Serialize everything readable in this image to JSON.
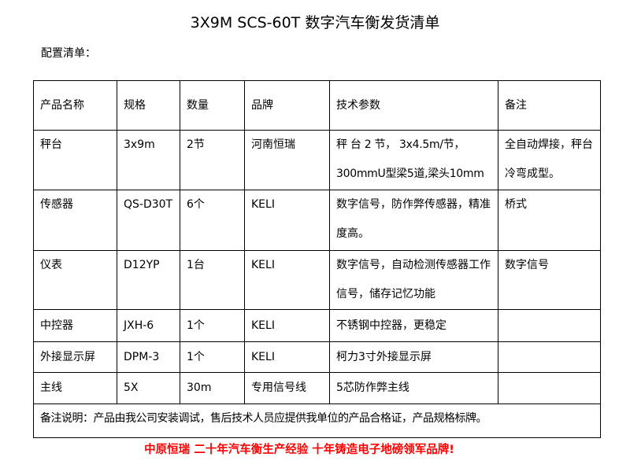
{
  "title": "3X9M SCS-60T 数字汽车衡发货清单",
  "subtitle": "配置清单：",
  "table": {
    "headers": [
      "产品名称",
      "规格",
      "数量",
      "品牌",
      "技术参数",
      "备注"
    ],
    "rows": [
      [
        "秤台",
        "3x9m",
        "2节",
        "河南恒瑞",
        "秤 台 2 节， 3x4.5m/节， 300mmU型梁5道,梁头10mm",
        "全自动焊接，秤台冷弯成型。"
      ],
      [
        "传感器",
        "QS-D30T",
        "6个",
        "KELI",
        "数字信号，防作弊传感器，精准度高。",
        "桥式"
      ],
      [
        "仪表",
        "D12YP",
        "1台",
        "KELI",
        "数字信号，自动检测传感器工作信号，储存记忆功能",
        "数字信号"
      ],
      [
        "中控器",
        "JXH-6",
        "1个",
        "KELI",
        "不锈钢中控器，更稳定",
        ""
      ],
      [
        "外接显示屏",
        "DPM-3",
        "1个",
        "KELI",
        "柯力3寸外接显示屏",
        ""
      ],
      [
        "主线",
        "5X",
        "30m",
        "专用信号线",
        "5芯防作弊主线",
        ""
      ]
    ],
    "note": "备注说明：产品由我公司安装调试，售后技术人员应提供我单位的产品合格证，产品规格标牌。"
  },
  "slogan": "中原恒瑞 二十年汽车衡生产经验 十年铸造电子地磅领军品牌!",
  "colors": {
    "slogan": "#ff0000"
  }
}
